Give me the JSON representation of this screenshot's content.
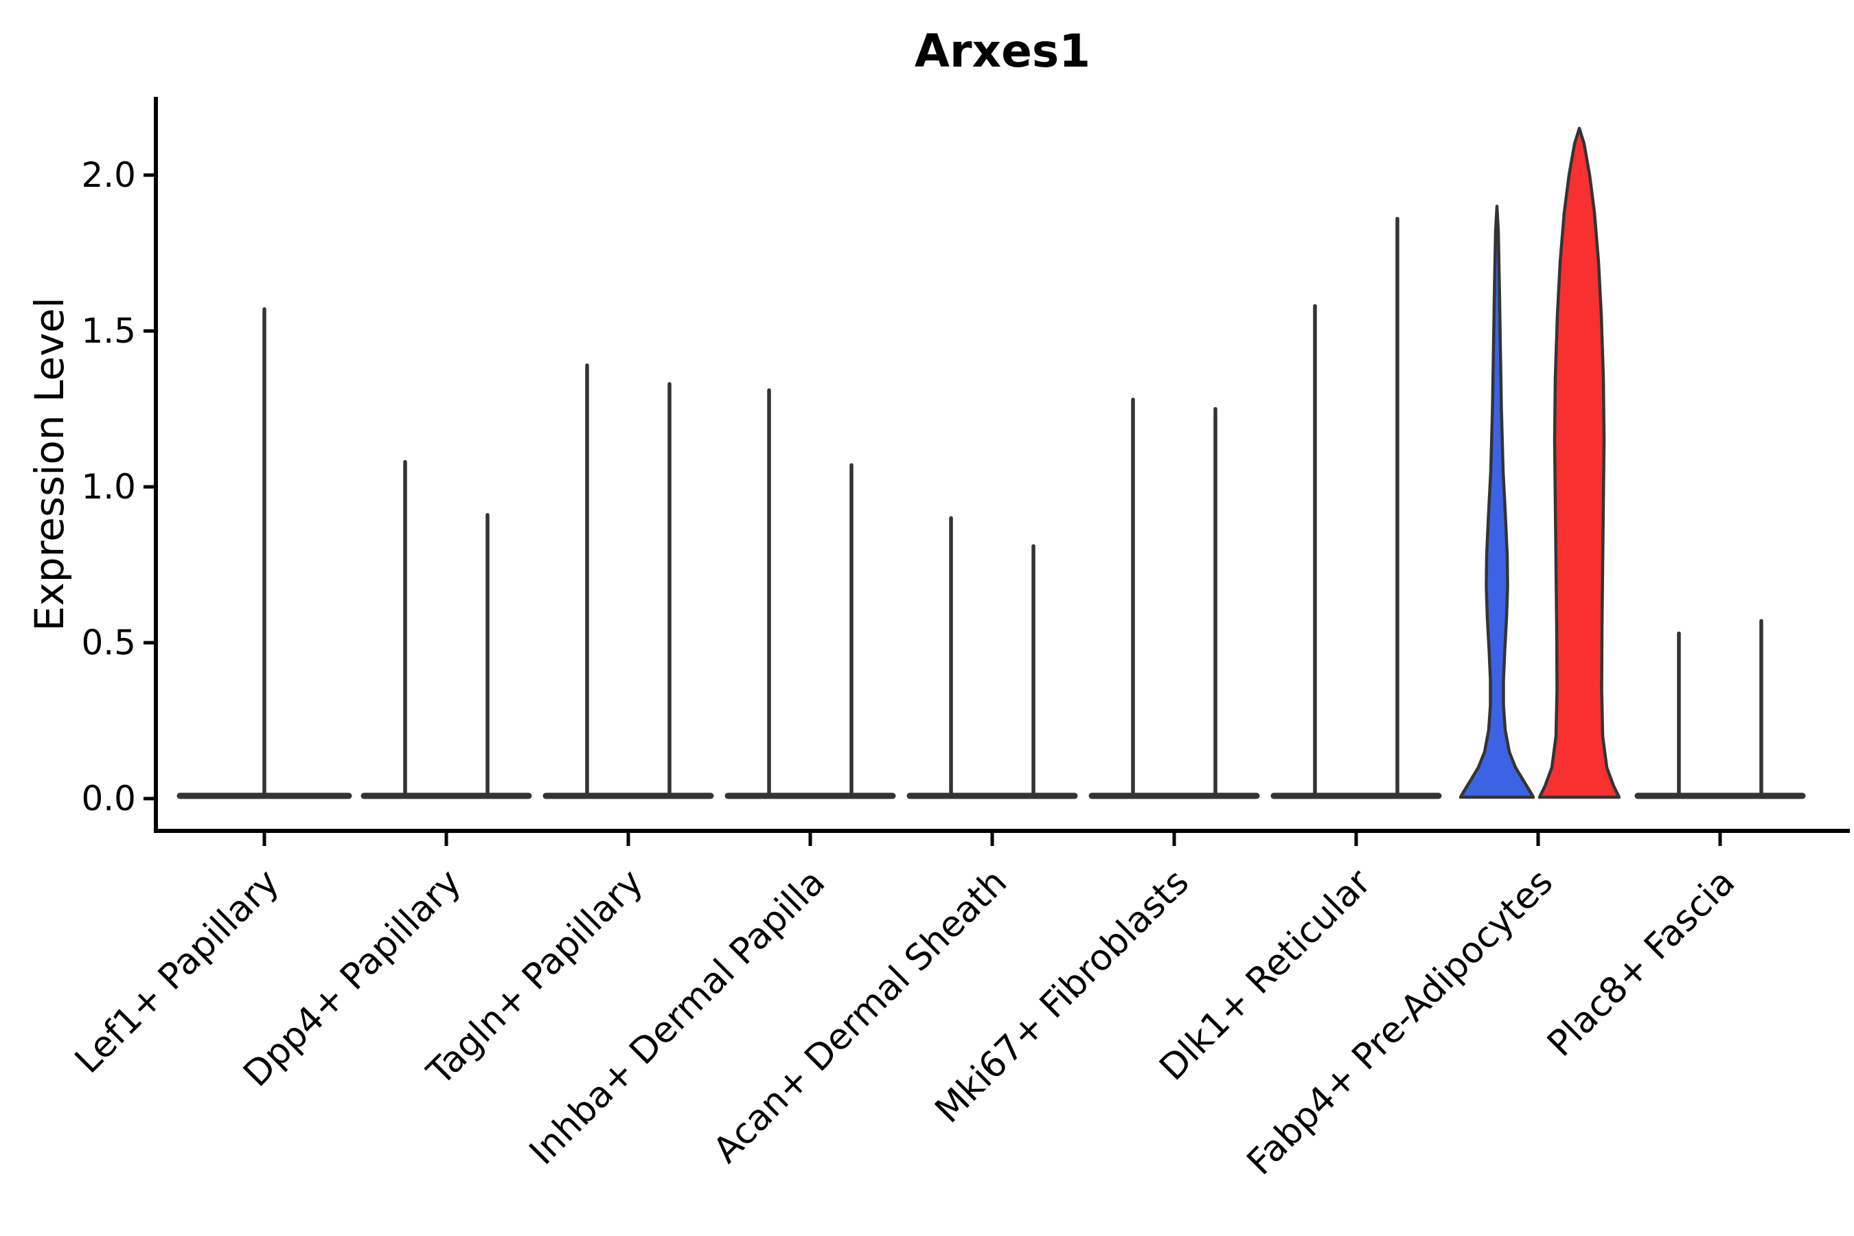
{
  "title": "Arxes1",
  "axes": {
    "ylabel": "Expression Level",
    "xlabel": "",
    "ytick_values": [
      0.0,
      0.5,
      1.0,
      1.5,
      2.0
    ],
    "ytick_labels": [
      "0.0",
      "0.5",
      "1.0",
      "1.5",
      "2.0"
    ],
    "ylim": [
      -0.1,
      2.25
    ],
    "grid": false,
    "legend": "none"
  },
  "colors": {
    "axis": "#000000",
    "violin_outline": "#343434",
    "highlight_blue": "#3C63E4",
    "highlight_red": "#F93030",
    "background": "#ffffff"
  },
  "chart_data": {
    "type": "violin",
    "title": "Arxes1",
    "xlabel": "",
    "ylabel": "Expression Level",
    "ylim": [
      -0.1,
      2.25
    ],
    "categories": [
      "Lef1+ Papillary",
      "Dpp4+ Papillary",
      "Tagln+ Papillary",
      "Inhba+ Dermal Papilla",
      "Acan+ Dermal Sheath",
      "Mki67+ Fibroblasts",
      "Dlk1+ Reticular",
      "Fabp4+ Pre-Adipocytes",
      "Plac8+ Fascia"
    ],
    "groups": [
      {
        "category": "Lef1+ Papillary",
        "violins": [
          {
            "position": "center",
            "peak": 1.57,
            "style": "spike",
            "fill": "none"
          }
        ]
      },
      {
        "category": "Dpp4+ Papillary",
        "violins": [
          {
            "position": "left",
            "peak": 1.08,
            "style": "spike",
            "fill": "none"
          },
          {
            "position": "right",
            "peak": 0.91,
            "style": "spike",
            "fill": "none"
          }
        ]
      },
      {
        "category": "Tagln+ Papillary",
        "violins": [
          {
            "position": "left",
            "peak": 1.39,
            "style": "spike",
            "fill": "none"
          },
          {
            "position": "right",
            "peak": 1.33,
            "style": "spike",
            "fill": "none"
          }
        ]
      },
      {
        "category": "Inhba+ Dermal Papilla",
        "violins": [
          {
            "position": "left",
            "peak": 1.31,
            "style": "spike",
            "fill": "none"
          },
          {
            "position": "right",
            "peak": 1.07,
            "style": "spike",
            "fill": "none"
          }
        ]
      },
      {
        "category": "Acan+ Dermal Sheath",
        "violins": [
          {
            "position": "left",
            "peak": 0.9,
            "style": "spike",
            "fill": "none"
          },
          {
            "position": "right",
            "peak": 0.81,
            "style": "spike",
            "fill": "none"
          }
        ]
      },
      {
        "category": "Mki67+ Fibroblasts",
        "violins": [
          {
            "position": "left",
            "peak": 1.28,
            "style": "spike",
            "fill": "none"
          },
          {
            "position": "right",
            "peak": 1.25,
            "style": "spike",
            "fill": "none"
          }
        ]
      },
      {
        "category": "Dlk1+ Reticular",
        "violins": [
          {
            "position": "left",
            "peak": 1.58,
            "style": "spike",
            "fill": "none"
          },
          {
            "position": "right",
            "peak": 1.86,
            "style": "spike",
            "fill": "none"
          }
        ]
      },
      {
        "category": "Fabp4+ Pre-Adipocytes",
        "violins": [
          {
            "position": "left",
            "peak": 1.9,
            "style": "filled",
            "fill": "#3C63E4",
            "profile": [
              [
                1.9,
                0
              ],
              [
                1.82,
                2
              ],
              [
                1.65,
                3.5
              ],
              [
                1.45,
                5
              ],
              [
                1.25,
                6.5
              ],
              [
                1.05,
                9
              ],
              [
                0.9,
                12.5
              ],
              [
                0.78,
                15
              ],
              [
                0.68,
                15.5
              ],
              [
                0.58,
                14
              ],
              [
                0.48,
                11.5
              ],
              [
                0.38,
                9.5
              ],
              [
                0.3,
                9.5
              ],
              [
                0.22,
                12
              ],
              [
                0.15,
                18
              ],
              [
                0.1,
                27
              ],
              [
                0.06,
                38
              ],
              [
                0.02,
                49
              ],
              [
                0.0,
                53
              ]
            ]
          },
          {
            "position": "right",
            "peak": 2.15,
            "style": "filled",
            "fill": "#F93030",
            "profile": [
              [
                2.15,
                0
              ],
              [
                2.1,
                7
              ],
              [
                2.0,
                15
              ],
              [
                1.88,
                22
              ],
              [
                1.72,
                28
              ],
              [
                1.55,
                32
              ],
              [
                1.35,
                35
              ],
              [
                1.15,
                36
              ],
              [
                0.95,
                35
              ],
              [
                0.75,
                34
              ],
              [
                0.55,
                33
              ],
              [
                0.35,
                32.5
              ],
              [
                0.2,
                34
              ],
              [
                0.1,
                40
              ],
              [
                0.04,
                50
              ],
              [
                0.0,
                58
              ]
            ]
          }
        ]
      },
      {
        "category": "Plac8+ Fascia",
        "violins": [
          {
            "position": "left",
            "peak": 0.53,
            "style": "spike",
            "fill": "none"
          },
          {
            "position": "right",
            "peak": 0.57,
            "style": "spike",
            "fill": "none"
          }
        ]
      }
    ]
  }
}
